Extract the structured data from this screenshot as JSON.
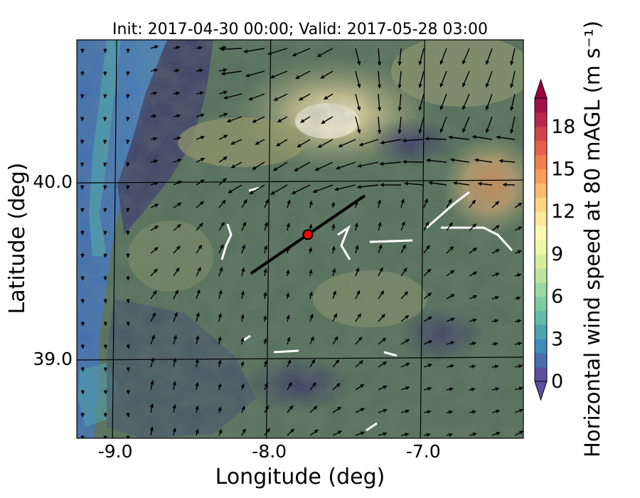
{
  "title": "Init: 2017-04-30 00:00; Valid: 2017-05-28 03:00",
  "axes": {
    "xlabel": "Longitude (deg)",
    "ylabel": "Latitude (deg)",
    "xlim": [
      -9.25,
      -6.35
    ],
    "ylim": [
      38.55,
      40.8
    ],
    "xticks": [
      {
        "value": -9.0,
        "label": "-9.0"
      },
      {
        "value": -8.0,
        "label": "-8.0"
      },
      {
        "value": -7.0,
        "label": "-7.0"
      }
    ],
    "yticks": [
      {
        "value": 40.0,
        "label": "40.0"
      },
      {
        "value": 39.0,
        "label": "39.0"
      }
    ]
  },
  "colorbar": {
    "label": "Horizontal wind speed at 80 mAGL (m s⁻¹)",
    "min": 0,
    "max": 20,
    "extend": "both",
    "ticks": [
      {
        "value": 0,
        "label": "0"
      },
      {
        "value": 3,
        "label": "3"
      },
      {
        "value": 6,
        "label": "6"
      },
      {
        "value": 9,
        "label": "9"
      },
      {
        "value": 12,
        "label": "12"
      },
      {
        "value": 15,
        "label": "15"
      },
      {
        "value": 18,
        "label": "18"
      }
    ],
    "colors": [
      "#5e4fa2",
      "#4b6db0",
      "#3f8bbd",
      "#4aa4b2",
      "#62bba8",
      "#7ecba4",
      "#9dd7a4",
      "#bee5a0",
      "#d7ef9b",
      "#eef8a6",
      "#fbf8b0",
      "#fee89a",
      "#fed481",
      "#fdbb6c",
      "#fa9c58",
      "#f47d4d",
      "#e8604a",
      "#d6434d",
      "#be254c",
      "#a0104a"
    ],
    "under_color": "#5e4fa2",
    "over_color": "#9e0142"
  },
  "chart_data": {
    "type": "map",
    "title": "Init: 2017-04-30 00:00; Valid: 2017-05-28 03:00",
    "xlabel": "Longitude (deg)",
    "ylabel": "Latitude (deg)",
    "field": "Horizontal wind speed at 80 mAGL",
    "units": "m s-1",
    "site_marker": {
      "lon": -7.75,
      "lat": 39.7,
      "color": "#ff0000"
    },
    "transect_line": {
      "start": {
        "lon": -8.12,
        "lat": 39.48
      },
      "end": {
        "lon": -7.38,
        "lat": 39.92
      }
    },
    "grid": true
  },
  "colors": {
    "land_base": "#4f6f5a",
    "ocean": "#3f74b4",
    "highland": "#a7a772",
    "marker": "#ff0000"
  }
}
